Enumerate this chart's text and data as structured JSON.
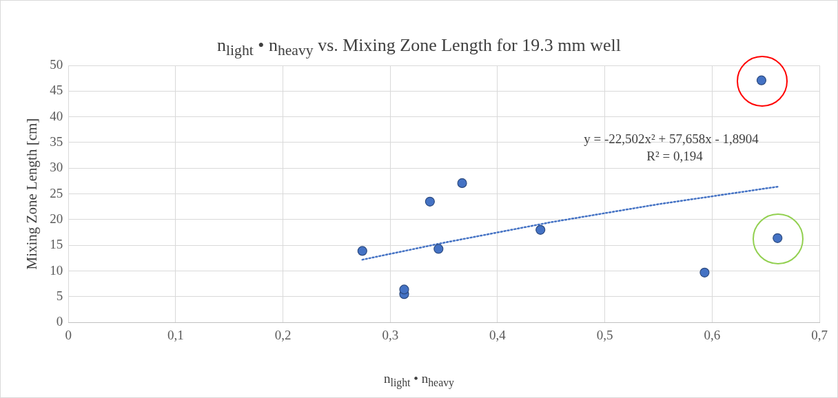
{
  "chart_data": {
    "type": "scatter",
    "title": "n$_{light}$ • n$_{heavy}$ vs. Mixing Zone Length for 19.3 mm well",
    "xlabel": "n$_{light}$ • n$_{heavy}$",
    "ylabel": "Mixing Zone Length [cm]",
    "xlim": [
      0,
      0.7
    ],
    "xticks": [
      0,
      {
        "value": 0.1,
        "label": "0,1"
      },
      {
        "value": 0.2,
        "label": "0,2"
      },
      {
        "value": 0.3,
        "label": "0,3"
      },
      {
        "value": 0.4,
        "label": "0,4"
      },
      {
        "value": 0.5,
        "label": "0,5"
      },
      {
        "value": 0.6,
        "label": "0,6"
      },
      {
        "value": 0.7,
        "label": "0,7"
      }
    ],
    "ylim": [
      0,
      50
    ],
    "yticks": [
      0,
      5,
      10,
      15,
      20,
      25,
      30,
      35,
      40,
      45,
      50
    ],
    "grid": true,
    "legend": false,
    "series": [
      {
        "color": "#4472c4",
        "marker": "circle",
        "x": [
          0.274,
          0.313,
          0.313,
          0.337,
          0.345,
          0.367,
          0.44,
          0.593,
          0.646,
          0.661
        ],
        "values": [
          13.9,
          5.5,
          6.4,
          23.5,
          14.3,
          27.1,
          18.0,
          9.7,
          47.1,
          16.4
        ]
      },
      {
        "type": "line",
        "color": "#4472c4",
        "marker": "none",
        "line_style": "dotted",
        "x": [
          0.274,
          0.35,
          0.45,
          0.55,
          0.661
        ],
        "values": [
          12.2,
          15.5,
          19.5,
          23.0,
          26.4
        ]
      }
    ],
    "annotations": [
      "y = -22,502x² + 57,658x - 1,8904",
      "R² = 0,194"
    ]
  }
}
